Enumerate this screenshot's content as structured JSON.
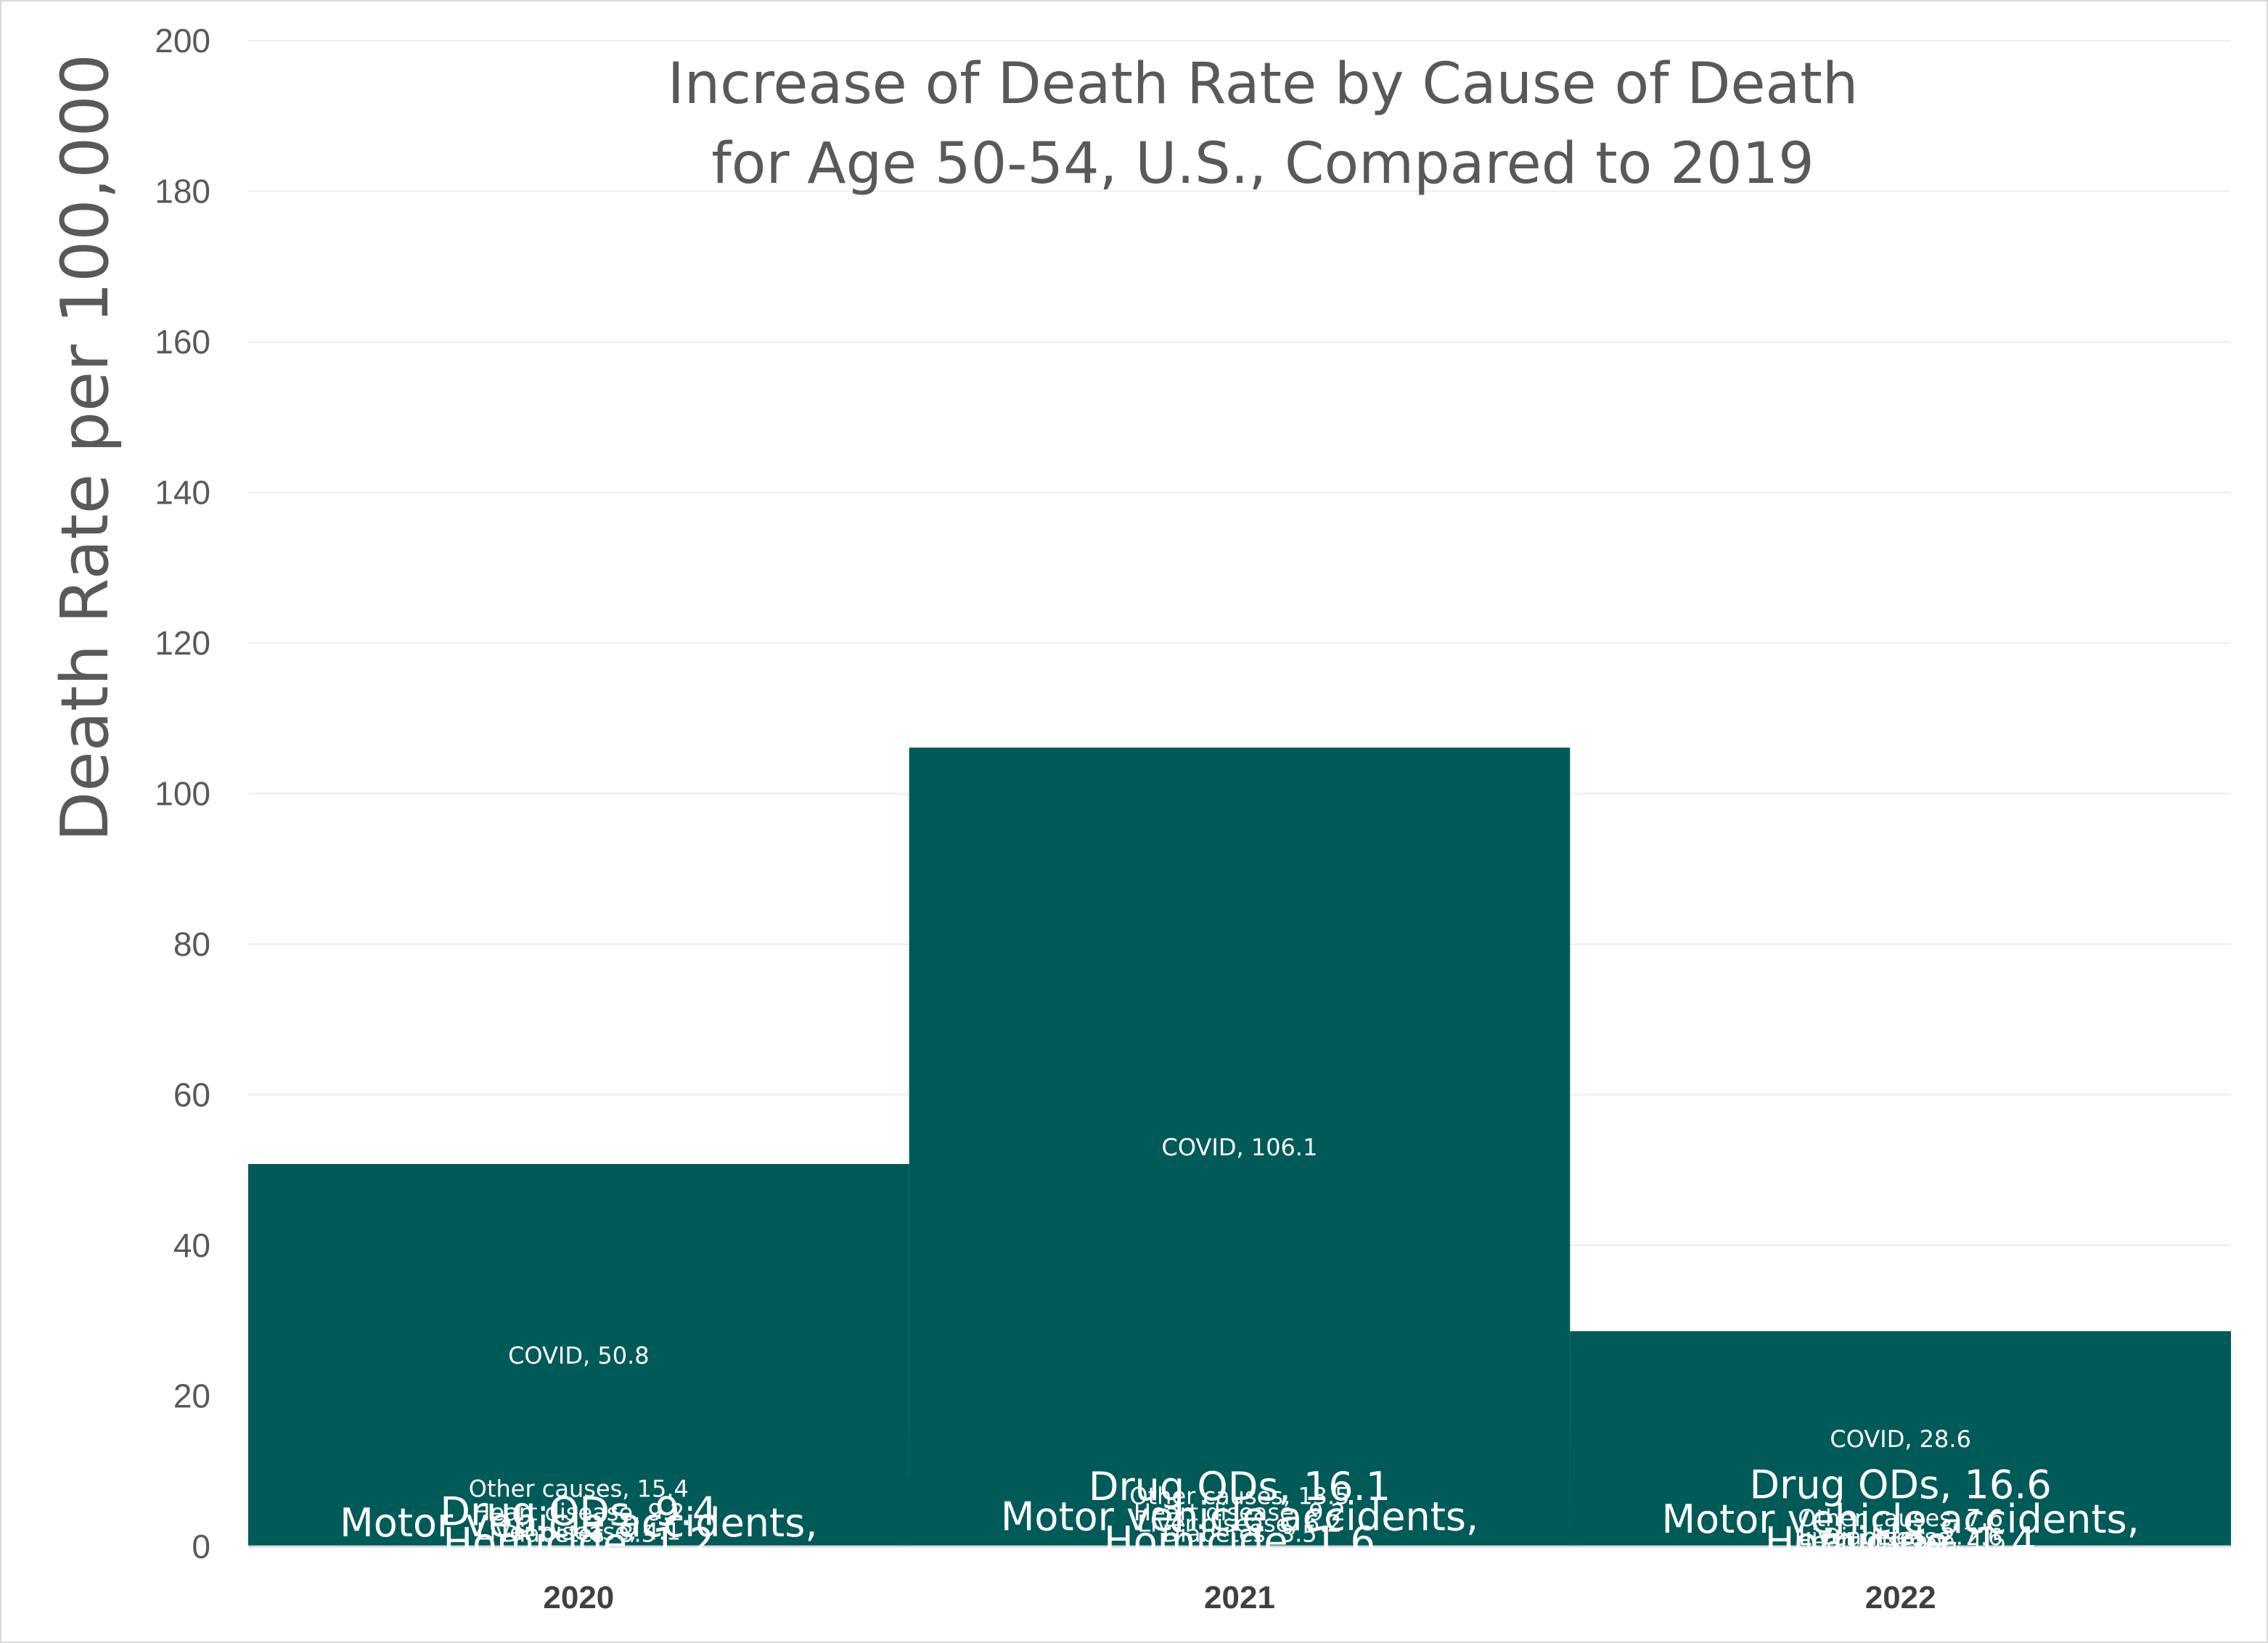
{
  "chart_data": {
    "type": "bar",
    "stacked": true,
    "title": [
      "Increase of Death Rate by Cause of Death",
      "for Age 50-54, U.S., Compared to 2019"
    ],
    "ylabel": "Death Rate per 100,000",
    "xlabel": "",
    "ylim": [
      0,
      200
    ],
    "yticks": [
      0,
      20,
      40,
      60,
      80,
      100,
      120,
      140,
      160,
      180,
      200
    ],
    "grid": true,
    "legend": "none",
    "categories": [
      "2020",
      "2021",
      "2022"
    ],
    "series": [
      {
        "name": "Other causes",
        "color": "#00363A",
        "values": [
          15.4,
          13.5,
          7.6
        ],
        "labels": [
          "Other causes, 15.4",
          "Other causes, 13.5",
          "Other causes, 7.6"
        ],
        "label_size": "small"
      },
      {
        "name": "Motor vehicle accidents",
        "color": "#9A5B12",
        "values": [
          0.8,
          2.4,
          1.7
        ],
        "labels": [
          "Motor vehicle accidents, 0.8",
          "Motor vehicle accidents, 2.4",
          "Motor vehicle accidents, 1.7"
        ],
        "label_size": "large"
      },
      {
        "name": "Drug ODs",
        "color": "#00B9CC",
        "values": [
          9.4,
          16.1,
          16.6
        ],
        "labels": [
          "Drug ODs, 9.4",
          "Drug ODs, 16.1",
          "Drug ODs, 16.6"
        ],
        "label_size": "large"
      },
      {
        "name": "Homicide",
        "color": "#00928F",
        "values": [
          1.2,
          1.6,
          1.4
        ],
        "labels": [
          "Homicide, 1.2",
          "Homicide, 1.6",
          "Homicide, 1.4"
        ],
        "label_size": "large"
      },
      {
        "name": "Heart disease",
        "color": "#1E1B4F",
        "values": [
          9.2,
          9.2,
          1.5
        ],
        "labels": [
          "Heart disease, 9.2",
          "Heart disease, 9.2",
          "Heart disease, 1.5"
        ],
        "label_size": "small"
      },
      {
        "name": "Liver disease",
        "color": "#4F360E",
        "values": [
          4.1,
          6.2,
          2.6
        ],
        "labels": [
          "Liver disease, 4.1",
          "Liver disease, 6.2",
          "Liver disease, 2.6"
        ],
        "label_size": "small"
      },
      {
        "name": "Diabetes",
        "color": "#006E7A",
        "values": [
          3.5,
          3.5,
          2.7
        ],
        "labels": [
          "Diabetes, 3.5",
          "Diabetes, 3.5",
          "Diabetes, 2.7"
        ],
        "label_size": "small"
      },
      {
        "name": "COVID",
        "color": "#005A58",
        "values": [
          50.8,
          106.1,
          28.6
        ],
        "labels": [
          "COVID, 50.8",
          "COVID, 106.1",
          "COVID, 28.6"
        ],
        "label_size": "small"
      }
    ]
  },
  "colors": {
    "background": "#ffffff",
    "gridline": "#EDEDED",
    "axis_text": "#595959",
    "category_text": "#404040",
    "segment_label": "#ffffff"
  }
}
